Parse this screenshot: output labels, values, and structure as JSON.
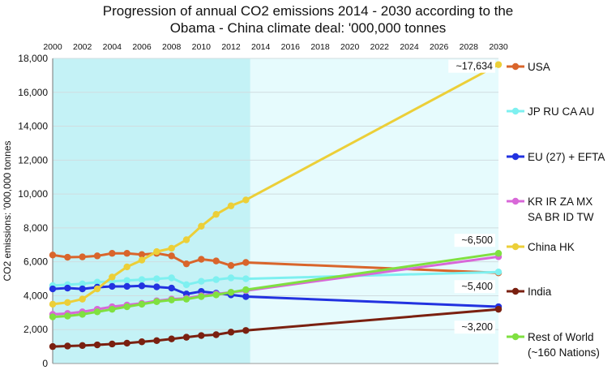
{
  "chart_data": {
    "type": "line",
    "title": "Progression of annual CO2 emissions 2014 - 2030 according to the",
    "subtitle": "Obama - China climate deal:  '000,000 tonnes",
    "ylabel": "CO2 emissions: '000,000 tonnes",
    "xlabel": "",
    "xlim": [
      2000,
      2030
    ],
    "ylim": [
      0,
      18000
    ],
    "x_ticks": [
      "2000",
      "2002",
      "2004",
      "2006",
      "2008",
      "2010",
      "2012",
      "2014",
      "2016",
      "2018",
      "2020",
      "2022",
      "2024",
      "2026",
      "2028",
      "2030"
    ],
    "y_ticks": [
      "0",
      "2,000",
      "4,000",
      "6,000",
      "8,000",
      "10,000",
      "12,000",
      "14,000",
      "16,000",
      "18,000"
    ],
    "historical_end": 2013,
    "colors": {
      "historical_bg": "#c4f2f6",
      "projection_bg": "#e6fbfd",
      "gridline": "#d0dde0"
    },
    "series": [
      {
        "name": "USA",
        "color": "#d9652b",
        "x": [
          2000,
          2001,
          2002,
          2003,
          2004,
          2005,
          2006,
          2007,
          2008,
          2009,
          2010,
          2011,
          2012,
          2013,
          2030
        ],
        "values": [
          6400,
          6270,
          6290,
          6350,
          6500,
          6500,
          6430,
          6500,
          6350,
          5880,
          6150,
          6050,
          5780,
          5960,
          5350
        ]
      },
      {
        "name": "JP RU CA AU",
        "color": "#7ef0f0",
        "x": [
          2000,
          2001,
          2002,
          2003,
          2004,
          2005,
          2006,
          2007,
          2008,
          2009,
          2010,
          2011,
          2012,
          2013,
          2030
        ],
        "values": [
          4600,
          4650,
          4700,
          4800,
          4850,
          4900,
          4950,
          5000,
          5050,
          4650,
          4850,
          4950,
          5050,
          5000,
          5400
        ]
      },
      {
        "name": "EU (27) + EFTA",
        "color": "#2232e0",
        "x": [
          2000,
          2001,
          2002,
          2003,
          2004,
          2005,
          2006,
          2007,
          2008,
          2009,
          2010,
          2011,
          2012,
          2013,
          2030
        ],
        "values": [
          4400,
          4450,
          4400,
          4500,
          4550,
          4550,
          4580,
          4520,
          4450,
          4100,
          4250,
          4150,
          4050,
          3950,
          3350
        ]
      },
      {
        "name": "KR IR ZA MX SA BR ID TW",
        "color": "#d868d8",
        "x": [
          2000,
          2001,
          2002,
          2003,
          2004,
          2005,
          2006,
          2007,
          2008,
          2009,
          2010,
          2011,
          2012,
          2013,
          2030
        ],
        "values": [
          2900,
          2950,
          3050,
          3200,
          3350,
          3450,
          3550,
          3700,
          3800,
          3850,
          4000,
          4100,
          4200,
          4300,
          6300
        ]
      },
      {
        "name": "China HK",
        "color": "#eccf38",
        "x": [
          2000,
          2001,
          2002,
          2003,
          2004,
          2005,
          2006,
          2007,
          2008,
          2009,
          2010,
          2011,
          2012,
          2013,
          2030
        ],
        "values": [
          3500,
          3600,
          3800,
          4400,
          5100,
          5700,
          6100,
          6600,
          6800,
          7300,
          8100,
          8800,
          9300,
          9650,
          17634
        ]
      },
      {
        "name": "India",
        "color": "#7a2010",
        "x": [
          2000,
          2001,
          2002,
          2003,
          2004,
          2005,
          2006,
          2007,
          2008,
          2009,
          2010,
          2011,
          2012,
          2013,
          2030
        ],
        "values": [
          1000,
          1030,
          1060,
          1100,
          1150,
          1200,
          1280,
          1350,
          1450,
          1550,
          1650,
          1700,
          1850,
          1950,
          3200
        ]
      },
      {
        "name": "Rest of World",
        "color": "#7fe040",
        "x": [
          2000,
          2001,
          2002,
          2003,
          2004,
          2005,
          2006,
          2007,
          2008,
          2009,
          2010,
          2011,
          2012,
          2013,
          2030
        ],
        "values": [
          2750,
          2800,
          2900,
          3050,
          3200,
          3350,
          3500,
          3650,
          3750,
          3800,
          3950,
          4050,
          4200,
          4350,
          6500
        ]
      }
    ],
    "legend": [
      {
        "series": "USA",
        "lines": [
          "USA"
        ]
      },
      {
        "series": "JP RU CA AU",
        "lines": [
          "JP RU CA AU"
        ]
      },
      {
        "series": "EU (27) + EFTA",
        "lines": [
          "EU (27) + EFTA"
        ]
      },
      {
        "series": "KR IR ZA MX SA BR ID TW",
        "lines": [
          "KR IR ZA MX",
          "SA BR ID TW"
        ]
      },
      {
        "series": "China HK",
        "lines": [
          "China HK"
        ]
      },
      {
        "series": "India",
        "lines": [
          "India"
        ]
      },
      {
        "series": "Rest of World",
        "lines": [
          "Rest of World",
          "(~160 Nations)"
        ]
      }
    ],
    "annotations": [
      {
        "text": "~17,634",
        "x": 2030,
        "y": 17634
      },
      {
        "text": "~6,500",
        "x": 2030,
        "y": 6500
      },
      {
        "text": "~5,400",
        "x": 2030,
        "y": 5400
      },
      {
        "text": "~3,200",
        "x": 2030,
        "y": 3200
      }
    ]
  }
}
